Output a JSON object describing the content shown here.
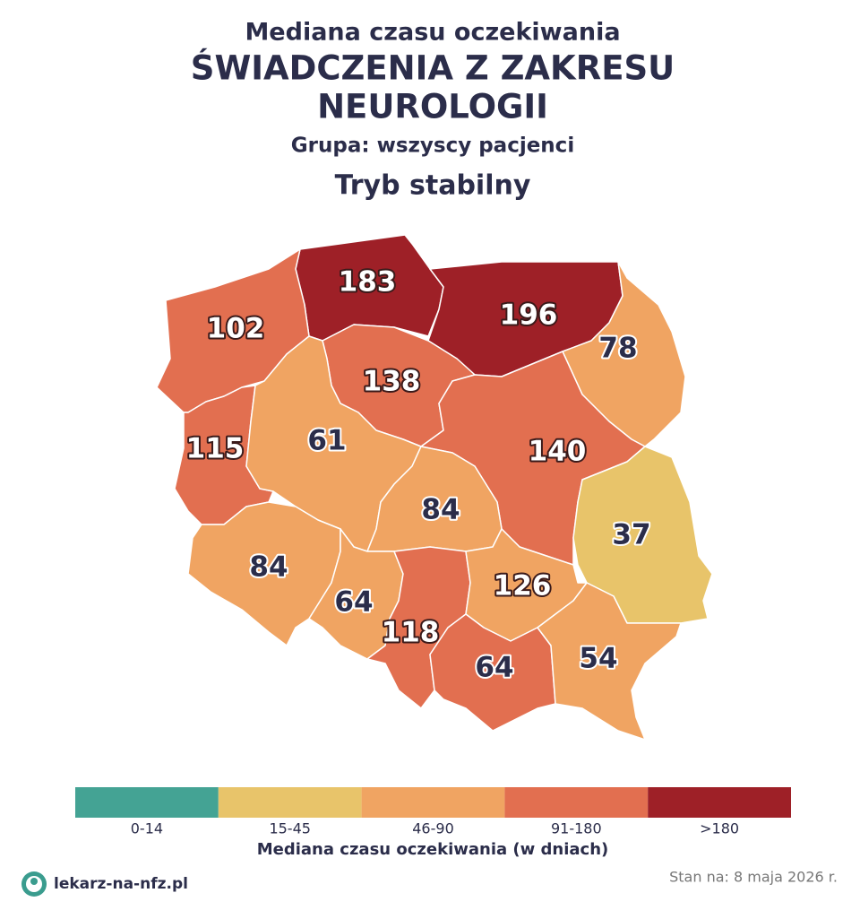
{
  "title": {
    "line1": "Mediana czasu oczekiwania",
    "line2": "ŚWIADCZENIA Z ZAKRESU",
    "line3": "NEUROLOGII",
    "group": "Grupa: wszyscy pacjenci",
    "mode": "Tryb stabilny"
  },
  "regions": [
    {
      "value": 183,
      "color": "#9e2027"
    },
    {
      "value": 196,
      "color": "#9e2027"
    },
    {
      "value": 78,
      "color": "#f0a462"
    },
    {
      "value": 102,
      "color": "#e26f50"
    },
    {
      "value": 138,
      "color": "#e26f50"
    },
    {
      "value": 115,
      "color": "#e26f50"
    },
    {
      "value": 61,
      "color": "#f0a462"
    },
    {
      "value": 140,
      "color": "#e26f50"
    },
    {
      "value": 84,
      "color": "#f0a462"
    },
    {
      "value": 37,
      "color": "#e8c46a"
    },
    {
      "value": 84,
      "color": "#f0a462"
    },
    {
      "value": 64,
      "color": "#f0a462"
    },
    {
      "value": 118,
      "color": "#e26f50"
    },
    {
      "value": 64,
      "color": "#f0a462"
    },
    {
      "value": 126,
      "color": "#e26f50"
    },
    {
      "value": 54,
      "color": "#f0a462"
    }
  ],
  "legend": {
    "title": "Mediana czasu oczekiwania (w dniach)",
    "bins": [
      {
        "label": "0-14",
        "color": "#44a394"
      },
      {
        "label": "15-45",
        "color": "#e8c46a"
      },
      {
        "label": "46-90",
        "color": "#f0a462"
      },
      {
        "label": "91-180",
        "color": "#e26f50"
      },
      {
        "label": ">180",
        "color": "#9e2027"
      }
    ]
  },
  "footer": {
    "brand": "lekarz-na-nfz.pl",
    "date": "Stan na: 8 maja 2026 r."
  }
}
